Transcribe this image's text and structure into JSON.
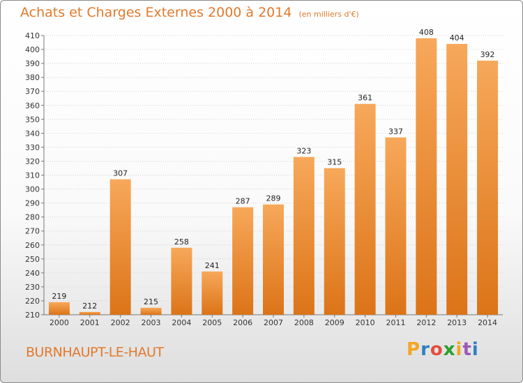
{
  "title": "Achats et Charges Externes 2000 à 2014",
  "unit": "(en milliers d'€)",
  "commune": "BURNHAUPT-LE-HAUT",
  "logo": {
    "letters": [
      "P",
      "r",
      "o",
      "x",
      "i",
      "t",
      "i"
    ],
    "colors": [
      "#f5a623",
      "#2f80c3",
      "#e74c3c",
      "#2ca02c",
      "#f5a623",
      "#9b59b6",
      "#2f80c3"
    ]
  },
  "colors": {
    "accent": "#e2792c",
    "bar_light": "#f7a85a",
    "bar_dark": "#dc7418"
  },
  "chart_data": {
    "type": "bar",
    "title": "Achats et Charges Externes 2000 à 2014",
    "xlabel": "",
    "ylabel": "",
    "categories": [
      "2000",
      "2001",
      "2002",
      "2003",
      "2004",
      "2005",
      "2006",
      "2007",
      "2008",
      "2009",
      "2010",
      "2011",
      "2012",
      "2013",
      "2014"
    ],
    "values": [
      219,
      212,
      307,
      215,
      258,
      241,
      287,
      289,
      323,
      315,
      361,
      337,
      408,
      404,
      392
    ],
    "ylim": [
      210,
      410
    ],
    "yticks": [
      210,
      220,
      230,
      240,
      250,
      260,
      270,
      280,
      290,
      300,
      310,
      320,
      330,
      340,
      350,
      360,
      370,
      380,
      390,
      400,
      410
    ],
    "grid": true,
    "legend": "none"
  }
}
